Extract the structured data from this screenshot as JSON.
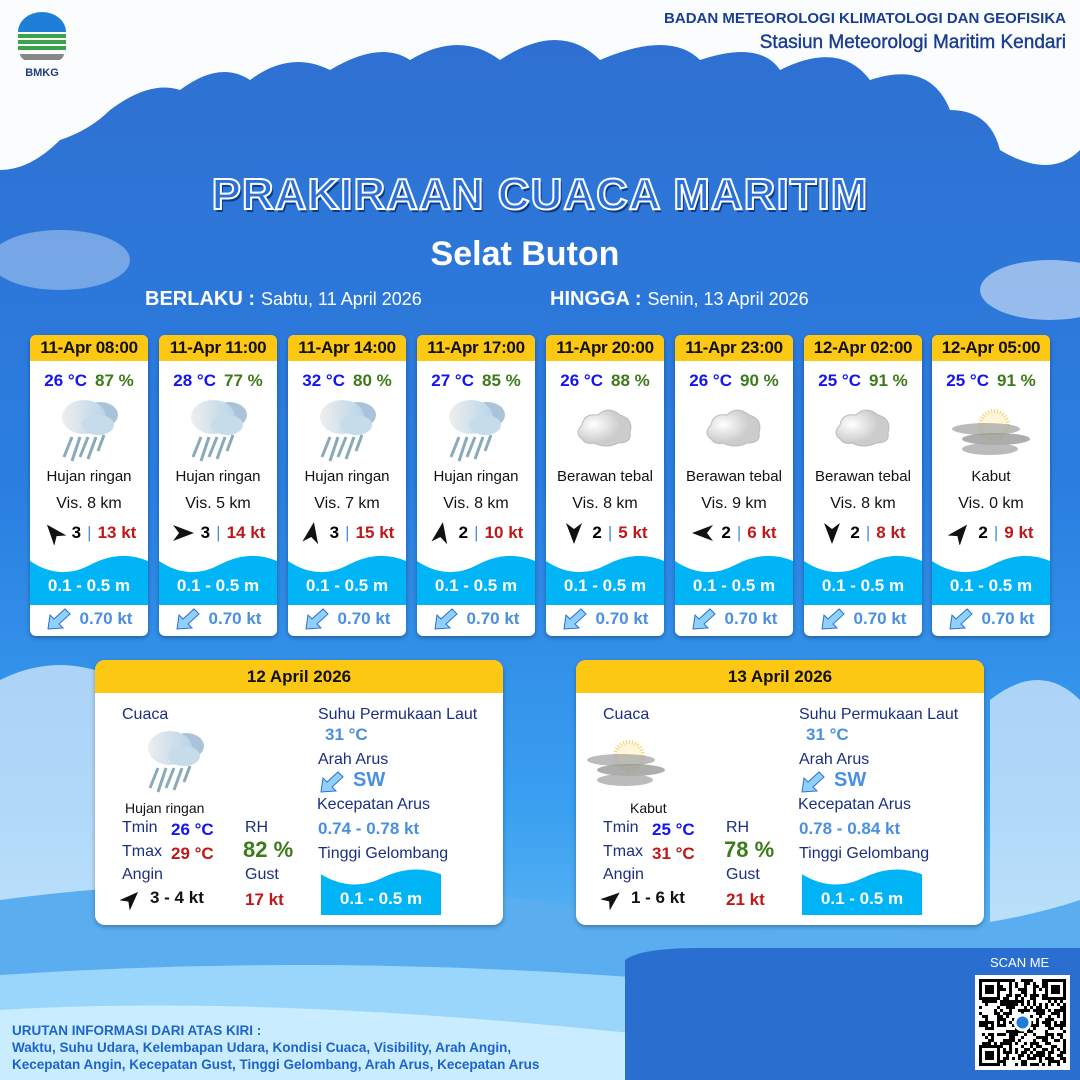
{
  "header": {
    "logo_text": "BMKG",
    "org_line1": "BADAN METEOROLOGI KLIMATOLOGI DAN GEOFISIKA",
    "org_line2": "Stasiun Meteorologi Maritim Kendari"
  },
  "title": "PRAKIRAAN CUACA MARITIM",
  "area": "Selat Buton",
  "validity": {
    "from_label": "BERLAKU :",
    "from_value": "Sabtu, 11 April 2026",
    "to_label": "HINGGA :",
    "to_value": "Senin, 13 April 2026"
  },
  "colors": {
    "header_yellow": "#fcc814",
    "temp_blue": "#1414f0",
    "rh_green": "#3d7a1a",
    "gust_red": "#c01818",
    "wave_blue": "#00b4f5",
    "current_blue": "#4a8fe0"
  },
  "forecasts": [
    {
      "time": "11-Apr 08:00",
      "temp": "26 °C",
      "rh": "87 %",
      "icon": "rain-cloud-icon",
      "condition": "Hujan ringan",
      "vis": "Vis.  8 km",
      "wind_dir_deg": -40,
      "wind_speed": "3",
      "gust": "13 kt",
      "wave": "0.1 - 0.5 m",
      "current_dir": "SW",
      "current_speed": "0.70 kt"
    },
    {
      "time": "11-Apr 11:00",
      "temp": "28 °C",
      "rh": "77 %",
      "icon": "rain-cloud-icon",
      "condition": "Hujan ringan",
      "vis": "Vis. 5 km",
      "wind_dir_deg": 90,
      "wind_speed": "3",
      "gust": "14 kt",
      "wave": "0.1 - 0.5 m",
      "current_dir": "SW",
      "current_speed": "0.70 kt"
    },
    {
      "time": "11-Apr 14:00",
      "temp": "32 °C",
      "rh": "80 %",
      "icon": "rain-cloud-icon",
      "condition": "Hujan ringan",
      "vis": "Vis. 7 km",
      "wind_dir_deg": 10,
      "wind_speed": "3",
      "gust": "15 kt",
      "wave": "0.1 - 0.5 m",
      "current_dir": "SW",
      "current_speed": "0.70 kt"
    },
    {
      "time": "11-Apr 17:00",
      "temp": "27 °C",
      "rh": "85 %",
      "icon": "rain-cloud-icon",
      "condition": "Hujan ringan",
      "vis": "Vis.  8 km",
      "wind_dir_deg": 10,
      "wind_speed": "2",
      "gust": "10 kt",
      "wave": "0.1 - 0.5 m",
      "current_dir": "SW",
      "current_speed": "0.70 kt"
    },
    {
      "time": "11-Apr 20:00",
      "temp": "26 °C",
      "rh": "88 %",
      "icon": "cloud-icon",
      "condition": "Berawan tebal",
      "vis": "Vis.  8 km",
      "wind_dir_deg": 180,
      "wind_speed": "2",
      "gust": "5 kt",
      "wave": "0.1 - 0.5 m",
      "current_dir": "SW",
      "current_speed": "0.70 kt"
    },
    {
      "time": "11-Apr 23:00",
      "temp": "26 °C",
      "rh": "90 %",
      "icon": "cloud-icon",
      "condition": "Berawan tebal",
      "vis": "Vis.  9 km",
      "wind_dir_deg": 270,
      "wind_speed": "2",
      "gust": "6 kt",
      "wave": "0.1 - 0.5 m",
      "current_dir": "SW",
      "current_speed": "0.70 kt"
    },
    {
      "time": "12-Apr 02:00",
      "temp": "25 °C",
      "rh": "91 %",
      "icon": "cloud-icon",
      "condition": "Berawan tebal",
      "vis": "Vis.  8 km",
      "wind_dir_deg": 180,
      "wind_speed": "2",
      "gust": "8 kt",
      "wave": "0.1 - 0.5 m",
      "current_dir": "SW",
      "current_speed": "0.70 kt"
    },
    {
      "time": "12-Apr 05:00",
      "temp": "25 °C",
      "rh": "91 %",
      "icon": "fog-icon",
      "condition": "Kabut",
      "vis": "Vis.  0 km",
      "wind_dir_deg": 40,
      "wind_speed": "2",
      "gust": "9 kt",
      "wave": "0.1 - 0.5 m",
      "current_dir": "SW",
      "current_speed": "0.70 kt"
    }
  ],
  "daily_labels": {
    "weather": "Cuaca",
    "sst": "Suhu Permukaan Laut",
    "current_dir": "Arah Arus",
    "current_speed": "Kecepatan Arus",
    "wave": "Tinggi Gelombang",
    "tmin": "Tmin",
    "tmax": "Tmax",
    "rh": "RH",
    "wind": "Angin",
    "gust": "Gust"
  },
  "daily": [
    {
      "date": "12 April 2026",
      "icon": "rain-cloud-icon",
      "condition": "Hujan ringan",
      "tmin": "26 °C",
      "tmax": "29 °C",
      "rh": "82 %",
      "wind_dir_deg": 45,
      "wind": "3  - 4 kt",
      "gust": "17 kt",
      "sst": "31 °C",
      "current_dir": "SW",
      "current_speed": "0.74  - 0.78 kt",
      "wave": "0.1 - 0.5 m"
    },
    {
      "date": "13 April 2026",
      "icon": "fog-icon",
      "condition": "Kabut",
      "tmin": "25 °C",
      "tmax": "31 °C",
      "rh": "78 %",
      "wind_dir_deg": 50,
      "wind": "1  - 6 kt",
      "gust": "21 kt",
      "sst": "31 °C",
      "current_dir": "SW",
      "current_speed": "0.78  - 0.84 kt",
      "wave": "0.1 - 0.5 m"
    }
  ],
  "footer": {
    "legend_title": "URUTAN INFORMASI DARI ATAS KIRI :",
    "legend_line1": "Waktu, Suhu Udara, Kelembapan Udara, Kondisi Cuaca, Visibility, Arah Angin,",
    "legend_line2": "Kecepatan Angin, Kecepatan Gust, Tinggi Gelombang, Arah Arus, Kecepatan Arus",
    "scan_label": "SCAN ME"
  }
}
